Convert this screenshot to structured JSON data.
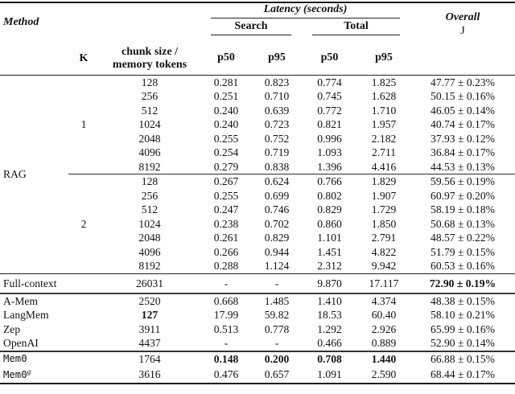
{
  "header": {
    "method": "Method",
    "k": "K",
    "chunk_line1": "chunk size /",
    "chunk_line2": "memory tokens",
    "latency": "Latency (seconds)",
    "search": "Search",
    "total": "Total",
    "p50": "p50",
    "p95": "p95",
    "overall_line1": "Overall",
    "overall_line2": "J"
  },
  "rows": [
    {
      "method": {
        "label": "RAG",
        "rowspan": 14
      },
      "k": {
        "label": "1",
        "rowspan": 7
      },
      "cells": [
        "128",
        "0.281",
        "0.823",
        "0.774",
        "1.825",
        "47.77 ± 0.23%"
      ]
    },
    {
      "cells": [
        "256",
        "0.251",
        "0.710",
        "0.745",
        "1.628",
        "50.15 ± 0.16%"
      ]
    },
    {
      "cells": [
        "512",
        "0.240",
        "0.639",
        "0.772",
        "1.710",
        "46.05 ± 0.14%"
      ]
    },
    {
      "cells": [
        "1024",
        "0.240",
        "0.723",
        "0.821",
        "1.957",
        "40.74 ± 0.17%"
      ]
    },
    {
      "cells": [
        "2048",
        "0.255",
        "0.752",
        "0.996",
        "2.182",
        "37.93 ± 0.12%"
      ]
    },
    {
      "cells": [
        "4096",
        "0.254",
        "0.719",
        "1.093",
        "2.711",
        "36.84 ± 0.17%"
      ]
    },
    {
      "cells": [
        "8192",
        "0.279",
        "0.838",
        "1.396",
        "4.416",
        "44.53 ± 0.13%"
      ]
    },
    {
      "k": {
        "label": "2",
        "rowspan": 7
      },
      "rule": "mid",
      "cells": [
        "128",
        "0.267",
        "0.624",
        "0.766",
        "1.829",
        "59.56 ± 0.19%"
      ]
    },
    {
      "cells": [
        "256",
        "0.255",
        "0.699",
        "0.802",
        "1.907",
        "60.97 ± 0.20%"
      ]
    },
    {
      "cells": [
        "512",
        "0.247",
        "0.746",
        "0.829",
        "1.729",
        "58.19 ± 0.18%"
      ]
    },
    {
      "cells": [
        "1024",
        "0.238",
        "0.702",
        "0.860",
        "1.850",
        "50.68 ± 0.13%"
      ]
    },
    {
      "cells": [
        "2048",
        "0.261",
        "0.829",
        "1.101",
        "2.791",
        "48.57 ± 0.22%"
      ]
    },
    {
      "cells": [
        "4096",
        "0.266",
        "0.944",
        "1.451",
        "4.822",
        "51.79 ± 0.15%"
      ]
    },
    {
      "cells": [
        "8192",
        "0.288",
        "1.124",
        "2.312",
        "9.942",
        "60.53 ± 0.16%"
      ]
    },
    {
      "method": {
        "label": "Full-context",
        "colspan": 2
      },
      "rule": "thin",
      "tall": true,
      "bold": [
        5
      ],
      "cells": [
        "26031",
        "-",
        "-",
        "9.870",
        "17.117",
        "72.90 ± 0.19%"
      ]
    },
    {
      "method": {
        "label": "A-Mem",
        "colspan": 2
      },
      "rule": "thick",
      "cells": [
        "2520",
        "0.668",
        "1.485",
        "1.410",
        "4.374",
        "48.38 ± 0.15%"
      ]
    },
    {
      "method": {
        "label": "LangMem",
        "colspan": 2
      },
      "bold": [
        0
      ],
      "cells": [
        "127",
        "17.99",
        "59.82",
        "18.53",
        "60.40",
        "58.10 ± 0.21%"
      ]
    },
    {
      "method": {
        "label": "Zep",
        "colspan": 2
      },
      "cells": [
        "3911",
        "0.513",
        "0.778",
        "1.292",
        "2.926",
        "65.99 ± 0.16%"
      ]
    },
    {
      "method": {
        "label": "OpenAI",
        "colspan": 2
      },
      "cells": [
        "4437",
        "-",
        "-",
        "0.466",
        "0.889",
        "52.90 ± 0.14%"
      ]
    },
    {
      "method": {
        "label": "Mem0",
        "colspan": 2,
        "mono": true
      },
      "rule": "thick2",
      "bold": [
        1,
        2,
        3,
        4
      ],
      "cells": [
        "1764",
        "0.148",
        "0.200",
        "0.708",
        "1.440",
        "66.88 ± 0.15%"
      ]
    },
    {
      "method": {
        "label": "Mem0",
        "colspan": 2,
        "mono": true,
        "sup": "g"
      },
      "cells": [
        "3616",
        "0.476",
        "0.657",
        "1.091",
        "2.590",
        "68.44 ± 0.17%"
      ]
    }
  ]
}
